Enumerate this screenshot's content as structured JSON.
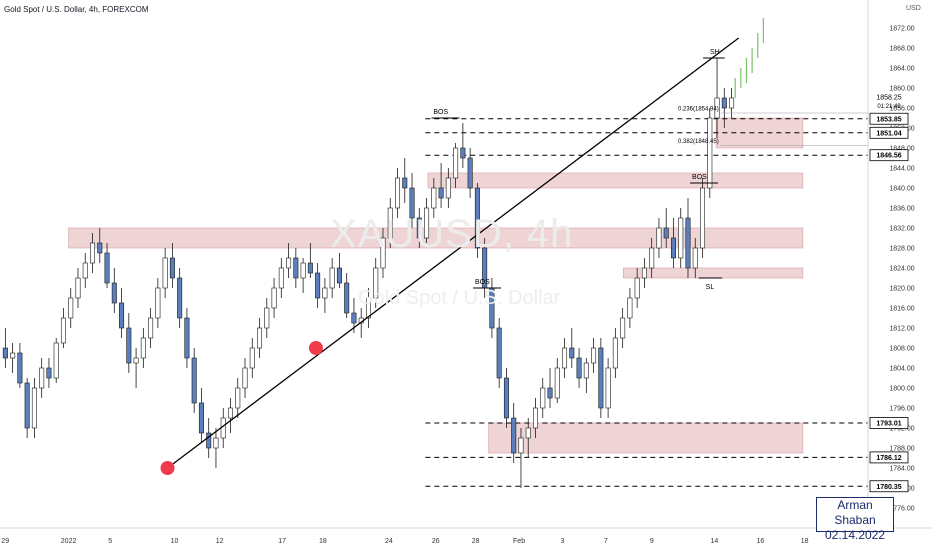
{
  "header": {
    "symbol_title": "Gold Spot / U.S. Dollar, 4h, FOREXCOM"
  },
  "watermark": {
    "ticker": "XAUUSD, 4h",
    "name": "Gold Spot / U.S. Dollar"
  },
  "signature": {
    "author": "Arman Shaban",
    "date": "02.14.2022"
  },
  "price_axis": {
    "currency": "USD",
    "ticks": [
      "1872.00",
      "1868.00",
      "1864.00",
      "1860.00",
      "1856.00",
      "1852.00",
      "1848.00",
      "1844.00",
      "1840.00",
      "1836.00",
      "1832.00",
      "1828.00",
      "1824.00",
      "1820.00",
      "1816.00",
      "1812.00",
      "1808.00",
      "1804.00",
      "1800.00",
      "1796.00",
      "1792.00",
      "1788.00",
      "1784.00",
      "1780.00",
      "1776.00"
    ],
    "last_price": "1858.25",
    "countdown": "01:21:49"
  },
  "level_labels": [
    {
      "text": "1853.85",
      "value": 1853.85,
      "style": "dark"
    },
    {
      "text": "1851.04",
      "value": 1851.04,
      "style": "dark"
    },
    {
      "text": "1846.56",
      "value": 1846.56,
      "style": "dark"
    },
    {
      "text": "1793.01",
      "value": 1793.01,
      "style": "dark"
    },
    {
      "text": "1786.12",
      "value": 1786.12,
      "style": "dark"
    },
    {
      "text": "1780.35",
      "value": 1780.35,
      "style": "dark"
    }
  ],
  "x_axis": {
    "ticks": [
      {
        "label": "29",
        "pos": 0.006
      },
      {
        "label": "2022",
        "pos": 0.079
      },
      {
        "label": "5",
        "pos": 0.127
      },
      {
        "label": "10",
        "pos": 0.201
      },
      {
        "label": "12",
        "pos": 0.253
      },
      {
        "label": "17",
        "pos": 0.325
      },
      {
        "label": "18",
        "pos": 0.372
      },
      {
        "label": "24",
        "pos": 0.448
      },
      {
        "label": "26",
        "pos": 0.502
      },
      {
        "label": "28",
        "pos": 0.548
      },
      {
        "label": "Feb",
        "pos": 0.598
      },
      {
        "label": "3",
        "pos": 0.648
      },
      {
        "label": "7",
        "pos": 0.698
      },
      {
        "label": "9",
        "pos": 0.751
      },
      {
        "label": "14",
        "pos": 0.823
      },
      {
        "label": "16",
        "pos": 0.876
      },
      {
        "label": "18",
        "pos": 0.927
      }
    ]
  },
  "annotations": {
    "bos": [
      "BOS",
      "BOS",
      "BOS"
    ],
    "sh": "SH",
    "sl": "SL",
    "fib_236": "0.236(1854.94)",
    "fib_382": "0.382(1848.45)"
  },
  "chart_data": {
    "type": "candlestick",
    "title": "Gold Spot / U.S. Dollar, 4h, FOREXCOM",
    "ylim": [
      1772,
      1876
    ],
    "candles": [
      [
        1808,
        1812,
        1804,
        1806
      ],
      [
        1806,
        1809,
        1803,
        1807
      ],
      [
        1807,
        1809,
        1800,
        1801
      ],
      [
        1801,
        1802,
        1790,
        1792
      ],
      [
        1792,
        1802,
        1790,
        1800
      ],
      [
        1800,
        1806,
        1798,
        1804
      ],
      [
        1804,
        1806,
        1800,
        1802
      ],
      [
        1802,
        1810,
        1801,
        1809
      ],
      [
        1809,
        1816,
        1808,
        1814
      ],
      [
        1814,
        1820,
        1812,
        1818
      ],
      [
        1818,
        1824,
        1816,
        1822
      ],
      [
        1822,
        1827,
        1820,
        1825
      ],
      [
        1825,
        1831,
        1823,
        1829
      ],
      [
        1829,
        1832,
        1825,
        1827
      ],
      [
        1827,
        1829,
        1820,
        1821
      ],
      [
        1821,
        1824,
        1815,
        1817
      ],
      [
        1817,
        1820,
        1810,
        1812
      ],
      [
        1812,
        1815,
        1803,
        1805
      ],
      [
        1805,
        1808,
        1800,
        1806
      ],
      [
        1806,
        1812,
        1804,
        1810
      ],
      [
        1810,
        1816,
        1808,
        1814
      ],
      [
        1814,
        1822,
        1812,
        1820
      ],
      [
        1820,
        1828,
        1818,
        1826
      ],
      [
        1826,
        1829,
        1820,
        1822
      ],
      [
        1822,
        1824,
        1812,
        1814
      ],
      [
        1814,
        1816,
        1804,
        1806
      ],
      [
        1806,
        1808,
        1795,
        1797
      ],
      [
        1797,
        1800,
        1789,
        1791
      ],
      [
        1791,
        1794,
        1786,
        1788
      ],
      [
        1788,
        1792,
        1784,
        1790
      ],
      [
        1790,
        1796,
        1788,
        1794
      ],
      [
        1794,
        1798,
        1791,
        1796
      ],
      [
        1796,
        1802,
        1794,
        1800
      ],
      [
        1800,
        1806,
        1798,
        1804
      ],
      [
        1804,
        1810,
        1802,
        1808
      ],
      [
        1808,
        1814,
        1806,
        1812
      ],
      [
        1812,
        1818,
        1810,
        1816
      ],
      [
        1816,
        1822,
        1814,
        1820
      ],
      [
        1820,
        1826,
        1818,
        1824
      ],
      [
        1824,
        1829,
        1822,
        1826
      ],
      [
        1826,
        1828,
        1820,
        1822
      ],
      [
        1822,
        1826,
        1819,
        1825
      ],
      [
        1825,
        1829,
        1822,
        1823
      ],
      [
        1823,
        1825,
        1816,
        1818
      ],
      [
        1818,
        1822,
        1815,
        1820
      ],
      [
        1820,
        1826,
        1818,
        1824
      ],
      [
        1824,
        1827,
        1820,
        1821
      ],
      [
        1821,
        1823,
        1814,
        1815
      ],
      [
        1815,
        1818,
        1811,
        1813
      ],
      [
        1813,
        1816,
        1810,
        1814
      ],
      [
        1814,
        1820,
        1812,
        1818
      ],
      [
        1818,
        1826,
        1816,
        1824
      ],
      [
        1824,
        1832,
        1822,
        1830
      ],
      [
        1830,
        1838,
        1828,
        1836
      ],
      [
        1836,
        1844,
        1834,
        1842
      ],
      [
        1842,
        1846,
        1837,
        1840
      ],
      [
        1840,
        1843,
        1832,
        1834
      ],
      [
        1834,
        1836,
        1828,
        1830
      ],
      [
        1830,
        1838,
        1829,
        1836
      ],
      [
        1836,
        1842,
        1834,
        1840
      ],
      [
        1840,
        1845,
        1836,
        1838
      ],
      [
        1838,
        1844,
        1836,
        1842
      ],
      [
        1842,
        1849,
        1840,
        1848
      ],
      [
        1848,
        1853,
        1844,
        1846
      ],
      [
        1846,
        1848,
        1838,
        1840
      ],
      [
        1840,
        1841,
        1826,
        1828
      ],
      [
        1828,
        1830,
        1818,
        1820
      ],
      [
        1820,
        1822,
        1810,
        1812
      ],
      [
        1812,
        1814,
        1800,
        1802
      ],
      [
        1802,
        1804,
        1792,
        1794
      ],
      [
        1794,
        1797,
        1785,
        1787
      ],
      [
        1787,
        1792,
        1780,
        1790
      ],
      [
        1790,
        1794,
        1786,
        1792
      ],
      [
        1792,
        1798,
        1790,
        1796
      ],
      [
        1796,
        1802,
        1794,
        1800
      ],
      [
        1800,
        1804,
        1796,
        1798
      ],
      [
        1798,
        1806,
        1797,
        1804
      ],
      [
        1804,
        1810,
        1802,
        1808
      ],
      [
        1808,
        1812,
        1804,
        1806
      ],
      [
        1806,
        1808,
        1800,
        1802
      ],
      [
        1802,
        1806,
        1799,
        1805
      ],
      [
        1805,
        1810,
        1803,
        1808
      ],
      [
        1808,
        1810,
        1794,
        1796
      ],
      [
        1796,
        1806,
        1794,
        1804
      ],
      [
        1804,
        1812,
        1802,
        1810
      ],
      [
        1810,
        1816,
        1808,
        1814
      ],
      [
        1814,
        1820,
        1812,
        1818
      ],
      [
        1818,
        1824,
        1816,
        1822
      ],
      [
        1822,
        1826,
        1820,
        1824
      ],
      [
        1824,
        1830,
        1822,
        1828
      ],
      [
        1828,
        1834,
        1826,
        1832
      ],
      [
        1832,
        1836,
        1828,
        1830
      ],
      [
        1830,
        1834,
        1824,
        1826
      ],
      [
        1826,
        1836,
        1824,
        1834
      ],
      [
        1834,
        1838,
        1822,
        1824
      ],
      [
        1824,
        1830,
        1822,
        1828
      ],
      [
        1828,
        1842,
        1826,
        1840
      ],
      [
        1840,
        1856,
        1838,
        1854
      ],
      [
        1854,
        1866,
        1850,
        1858
      ],
      [
        1858,
        1860,
        1852,
        1856
      ],
      [
        1856,
        1860,
        1854,
        1858
      ]
    ],
    "projection": [
      [
        1858,
        1862
      ],
      [
        1860,
        1864
      ],
      [
        1861,
        1866
      ],
      [
        1863,
        1868
      ],
      [
        1866,
        1871
      ],
      [
        1869,
        1874
      ]
    ],
    "zones": [
      {
        "from": 1848,
        "to": 1854,
        "start": 0.825,
        "end": 0.925
      },
      {
        "from": 1840,
        "to": 1843,
        "start": 0.493,
        "end": 0.925
      },
      {
        "from": 1828,
        "to": 1832,
        "start": 0.079,
        "end": 0.925
      },
      {
        "from": 1822,
        "to": 1824,
        "start": 0.718,
        "end": 0.925
      },
      {
        "from": 1787,
        "to": 1793,
        "start": 0.563,
        "end": 0.925
      }
    ],
    "trendline": {
      "from": [
        0.193,
        1784
      ],
      "to": [
        0.851,
        1870
      ]
    },
    "marks": [
      [
        0.193,
        1784
      ],
      [
        0.364,
        1808
      ]
    ]
  }
}
